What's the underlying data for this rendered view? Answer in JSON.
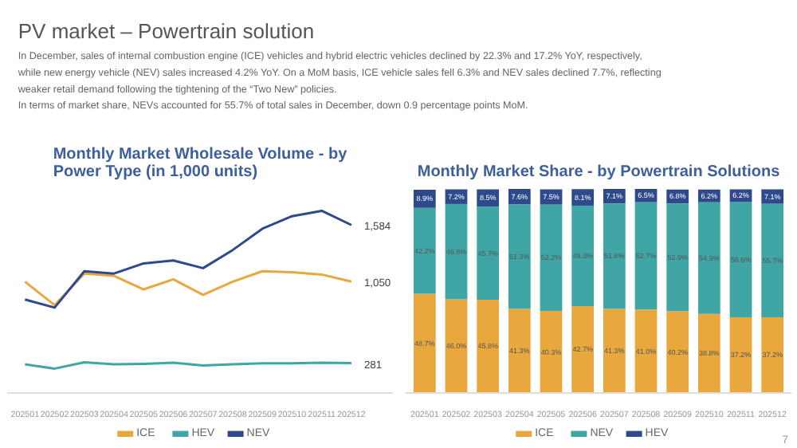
{
  "chart_data": [
    {
      "type": "other",
      "title": "PV market – Powertrain solution",
      "annotations": [
        "In December, sales of internal combustion engine (ICE) vehicles and hybrid electric vehicles declined by 22.3% and 17.2% YoY, respectively,",
        "while new energy vehicle (NEV) sales increased 4.2% YoY. On a MoM basis, ICE vehicle sales fell 6.3% and NEV sales declined 7.7%, reflecting",
        "weaker retail demand following the tightening of the “Two New” policies.",
        "In terms of market share, NEVs accounted for 55.7% of total sales in December, down 0.9 percentage points MoM."
      ]
    },
    {
      "type": "line",
      "title": "Monthly Market Wholesale Volume - by Power Type (in 1,000 units)",
      "categories": [
        "202501",
        "202502",
        "202503",
        "202504",
        "202505",
        "202506",
        "202507",
        "202508",
        "202509",
        "202510",
        "202511",
        "202512"
      ],
      "legend": "bottom",
      "grid": false,
      "series": [
        {
          "name": "ICE",
          "color": "#e8a83e",
          "values": [
            1050,
            828,
            1126,
            1104,
            977,
            1072,
            926,
            1050,
            1148,
            1139,
            1117,
            1050
          ],
          "value_labels": [
            null,
            null,
            null,
            null,
            null,
            null,
            null,
            null,
            null,
            null,
            null,
            "1,050"
          ]
        },
        {
          "name": "HEV",
          "color": "#3fa5a5",
          "values": [
            270,
            230,
            290,
            270,
            275,
            285,
            260,
            270,
            280,
            280,
            285,
            281
          ],
          "value_labels": [
            null,
            null,
            null,
            null,
            null,
            null,
            null,
            null,
            null,
            null,
            null,
            "281"
          ]
        },
        {
          "name": "NEV",
          "color": "#2e4a8c",
          "values": [
            881,
            805,
            1148,
            1126,
            1222,
            1250,
            1177,
            1348,
            1549,
            1667,
            1718,
            1584
          ],
          "value_labels": [
            null,
            null,
            null,
            null,
            null,
            null,
            null,
            null,
            null,
            null,
            null,
            "1,584"
          ]
        }
      ]
    },
    {
      "type": "bar",
      "stacked": true,
      "legend": "bottom",
      "grid": false,
      "title": "Monthly Market Share - by Powertrain Solutions",
      "categories": [
        "202501",
        "202502",
        "202503",
        "202504",
        "202505",
        "202506",
        "202507",
        "202508",
        "202509",
        "202510",
        "202511",
        "202512"
      ],
      "annotations": [
        "7"
      ],
      "series": [
        {
          "name": "ICE",
          "color": "#e8a83e",
          "values": [
            48.7,
            46.0,
            45.8,
            41.3,
            40.3,
            42.7,
            41.3,
            41.0,
            40.2,
            38.8,
            37.2,
            37.2
          ],
          "value_labels": [
            "48.7%",
            "46.0%",
            "45.8%",
            "41.3%",
            "40.3%",
            "42.7%",
            "41.3%",
            "41.0%",
            "40.2%",
            "38.8%",
            "37.2%",
            "37.2%"
          ]
        },
        {
          "name": "NEV",
          "color": "#3fa5a5",
          "values": [
            42.2,
            46.8,
            45.7,
            51.3,
            52.2,
            49.3,
            51.8,
            52.7,
            52.9,
            54.9,
            56.6,
            55.7
          ],
          "value_labels": [
            "42.2%",
            "46.8%",
            "45.7%",
            "51.3%",
            "52.2%",
            "49.3%",
            "51.8%",
            "52.7%",
            "52.9%",
            "54.9%",
            "56.6%",
            "55.7%"
          ]
        },
        {
          "name": "HEV",
          "color": "#2e4a8c",
          "values": [
            8.9,
            7.2,
            8.5,
            7.6,
            7.5,
            8.1,
            7.1,
            6.5,
            6.8,
            6.2,
            6.2,
            7.1
          ],
          "value_labels": [
            "8.9%",
            "7.2%",
            "8.5%",
            "7.6%",
            "7.5%",
            "8.1%",
            "7.1%",
            "6.5%",
            "6.8%",
            "6.2%",
            "6.2%",
            "7.1%"
          ]
        }
      ]
    }
  ]
}
